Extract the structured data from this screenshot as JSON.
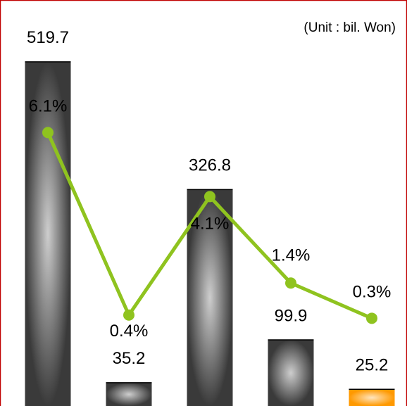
{
  "chart_data": {
    "type": "bar_line",
    "annotation": "(Unit : bil. Won)",
    "series": [
      {
        "type": "bar",
        "values": [
          519.7,
          35.2,
          326.8,
          99.9,
          25.2
        ],
        "colors": [
          "#3a3a3a",
          "#3a3a3a",
          "#3a3a3a",
          "#3a3a3a",
          "#ff9900"
        ]
      },
      {
        "type": "line",
        "axis": "y2",
        "color": "#8fc31f",
        "values": [
          6.1,
          0.4,
          4.1,
          1.4,
          0.3
        ],
        "value_labels": [
          "6.1%",
          "0.4%",
          "4.1%",
          "1.4%",
          "0.3%"
        ]
      }
    ],
    "ylim": [
      0,
      613
    ],
    "y2lim": [
      -2.44,
      10.24
    ]
  }
}
